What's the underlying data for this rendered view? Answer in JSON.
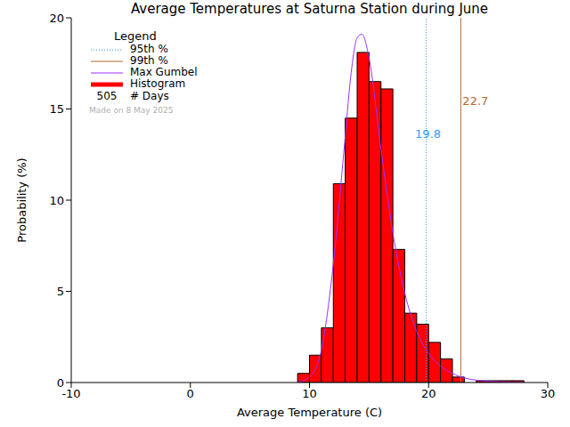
{
  "chart_data": {
    "type": "histogram",
    "title": "Average Temperatures at Saturna Station during June",
    "x_label": "Average Temperature (C)",
    "y_label": "Probability (%)",
    "xlim": [
      -10,
      30
    ],
    "xticks": [
      -10,
      0,
      10,
      20,
      30
    ],
    "ylim": [
      0,
      20
    ],
    "yticks": [
      0,
      5,
      10,
      15,
      20
    ],
    "grid": false,
    "legend": "upper left",
    "legend_title": "Legend",
    "series": [
      {
        "name": "Histogram",
        "type": "bar",
        "color": "#ff0000",
        "bins": [
          9,
          10,
          11,
          12,
          13,
          14,
          15,
          16,
          17,
          18,
          19,
          20,
          21,
          22,
          23,
          24,
          25,
          26,
          27,
          28
        ],
        "values": [
          0.5,
          1.5,
          3.0,
          10.9,
          14.5,
          18.1,
          16.5,
          16.1,
          7.3,
          3.8,
          3.2,
          2.2,
          1.3,
          0.3,
          0,
          0.1,
          0.1,
          0.1,
          0.1
        ]
      },
      {
        "name": "Max Gumbel",
        "type": "line",
        "color": "#9933ff",
        "x": [
          9,
          10,
          11,
          12,
          13,
          13.5,
          14,
          14.4,
          15,
          16,
          17,
          18,
          19,
          20,
          21,
          22,
          23,
          24,
          25,
          26,
          27,
          28
        ],
        "values": [
          0,
          0.3,
          1.8,
          6.5,
          13.5,
          17,
          18.9,
          19.1,
          17.8,
          12.8,
          8.2,
          4.9,
          2.8,
          1.6,
          0.9,
          0.5,
          0.25,
          0.13,
          0.07,
          0.04,
          0.02,
          0.01
        ]
      }
    ],
    "percentiles": [
      {
        "name": "95th %",
        "value": 19.8,
        "color": "#3399ff",
        "line_style": "dotted"
      },
      {
        "name": "99th %",
        "value": 22.7,
        "color": "#b86a2e",
        "line_style": "solid"
      }
    ],
    "count": {
      "value": 505,
      "label": "# Days"
    },
    "annotation": "Made on 8 May 2025"
  }
}
